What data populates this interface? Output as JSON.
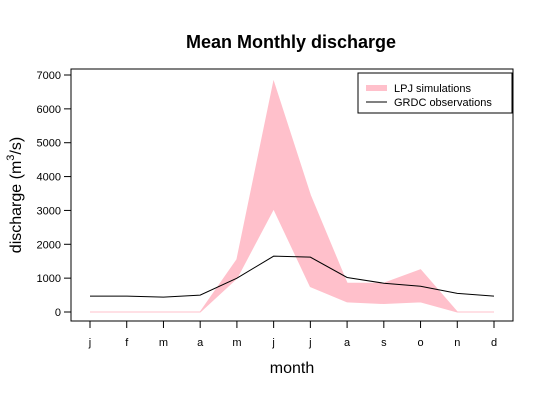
{
  "chart_data": {
    "type": "area",
    "title": "Mean Monthly discharge",
    "xlabel": "month",
    "ylabel": {
      "main": "discharge (m",
      "sup": "3",
      "tail": "/s)"
    },
    "categories": [
      "j",
      "f",
      "m",
      "a",
      "m",
      "j",
      "j",
      "a",
      "s",
      "o",
      "n",
      "d"
    ],
    "ylim": [
      0,
      7000
    ],
    "yticks": [
      0,
      1000,
      2000,
      3000,
      4000,
      5000,
      6000,
      7000
    ],
    "grid": false,
    "legend_position": "top-right",
    "series": [
      {
        "name": "LPJ simulations",
        "kind": "band",
        "color": "#ffc0cb",
        "lower": [
          0,
          0,
          0,
          0,
          1000,
          3050,
          750,
          300,
          250,
          300,
          0,
          0
        ],
        "upper": [
          0,
          0,
          0,
          0,
          1550,
          6800,
          3450,
          850,
          850,
          1250,
          0,
          0
        ]
      },
      {
        "name": "GRDC observations",
        "kind": "line",
        "color": "#000000",
        "values": [
          470,
          470,
          440,
          500,
          1000,
          1650,
          1620,
          1020,
          850,
          760,
          550,
          470
        ]
      }
    ]
  }
}
